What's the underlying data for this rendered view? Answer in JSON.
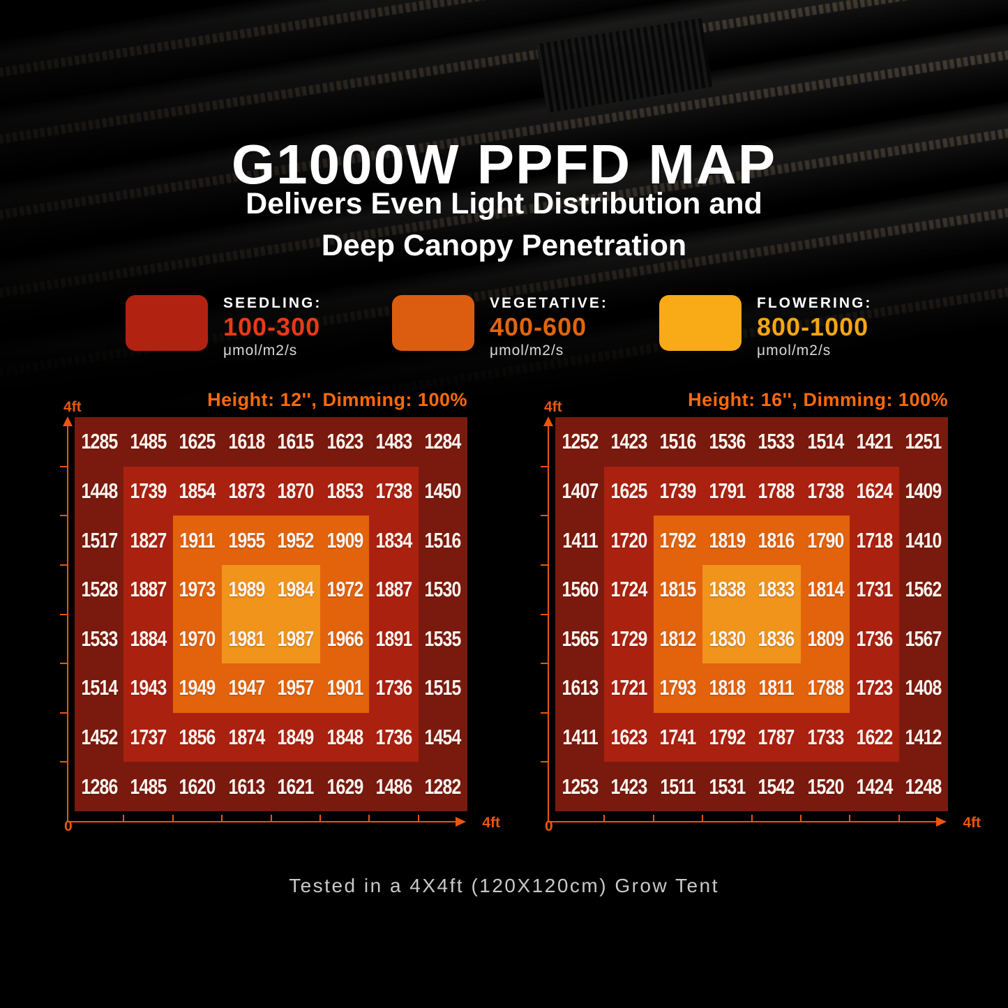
{
  "title": "G1000W PPFD MAP",
  "subtitle_line1": "Delivers Even Light Distribution and",
  "subtitle_line2": "Deep Canopy Penetration",
  "footer": "Tested in a 4X4ft (120X120cm) Grow Tent",
  "legend": {
    "items": [
      {
        "label": "SEEDLING:",
        "range": "100-300",
        "unit": "μmol/m2/s",
        "swatch_color": "#b22211",
        "range_color": "#e83a17"
      },
      {
        "label": "VEGETATIVE:",
        "range": "400-600",
        "unit": "μmol/m2/s",
        "swatch_color": "#dd5d10",
        "range_color": "#e0650f"
      },
      {
        "label": "FLOWERING:",
        "range": "800-1000",
        "unit": "μmol/m2/s",
        "swatch_color": "#f8ab17",
        "range_color": "#f6a513"
      }
    ]
  },
  "heatmap_zone_colors": [
    "#7a1a0e",
    "#ab2110",
    "#e2630c",
    "#f0941c"
  ],
  "axis_color": "#ea560c",
  "header_color": "#fb6a0c",
  "chart_data": [
    {
      "type": "heatmap",
      "title": "Height: 12'', Dimming: 100%",
      "unit": "μmol/m2/s",
      "x_axis": {
        "origin_label": "0",
        "end_label": "4ft"
      },
      "y_axis": {
        "end_label": "4ft"
      },
      "values": [
        [
          1285,
          1485,
          1625,
          1618,
          1615,
          1623,
          1483,
          1284
        ],
        [
          1448,
          1739,
          1854,
          1873,
          1870,
          1853,
          1738,
          1450
        ],
        [
          1517,
          1827,
          1911,
          1955,
          1952,
          1909,
          1834,
          1516
        ],
        [
          1528,
          1887,
          1973,
          1989,
          1984,
          1972,
          1887,
          1530
        ],
        [
          1533,
          1884,
          1970,
          1981,
          1987,
          1966,
          1891,
          1535
        ],
        [
          1514,
          1943,
          1949,
          1947,
          1957,
          1901,
          1736,
          1515
        ],
        [
          1452,
          1737,
          1856,
          1874,
          1849,
          1848,
          1736,
          1454
        ],
        [
          1286,
          1485,
          1620,
          1613,
          1621,
          1629,
          1486,
          1282
        ]
      ]
    },
    {
      "type": "heatmap",
      "title": "Height: 16'', Dimming: 100%",
      "unit": "μmol/m2/s",
      "x_axis": {
        "origin_label": "0",
        "end_label": "4ft"
      },
      "y_axis": {
        "end_label": "4ft"
      },
      "values": [
        [
          1252,
          1423,
          1516,
          1536,
          1533,
          1514,
          1421,
          1251
        ],
        [
          1407,
          1625,
          1739,
          1791,
          1788,
          1738,
          1624,
          1409
        ],
        [
          1411,
          1720,
          1792,
          1819,
          1816,
          1790,
          1718,
          1410
        ],
        [
          1560,
          1724,
          1815,
          1838,
          1833,
          1814,
          1731,
          1562
        ],
        [
          1565,
          1729,
          1812,
          1830,
          1836,
          1809,
          1736,
          1567
        ],
        [
          1613,
          1721,
          1793,
          1818,
          1811,
          1788,
          1723,
          1408
        ],
        [
          1411,
          1623,
          1741,
          1792,
          1787,
          1733,
          1622,
          1412
        ],
        [
          1253,
          1423,
          1511,
          1531,
          1542,
          1520,
          1424,
          1248
        ]
      ]
    }
  ]
}
